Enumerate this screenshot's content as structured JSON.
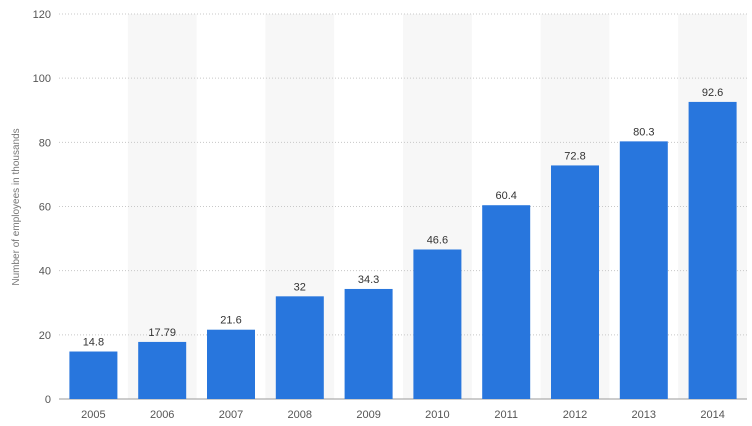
{
  "chart_data": {
    "type": "bar",
    "categories": [
      "2005",
      "2006",
      "2007",
      "2008",
      "2009",
      "2010",
      "2011",
      "2012",
      "2013",
      "2014"
    ],
    "values": [
      14.8,
      17.79,
      21.6,
      32,
      34.3,
      46.6,
      60.4,
      72.8,
      80.3,
      92.6
    ],
    "value_labels": [
      "14.8",
      "17.79",
      "21.6",
      "32",
      "34.3",
      "46.6",
      "60.4",
      "72.8",
      "80.3",
      "92.6"
    ],
    "title": "",
    "xlabel": "",
    "ylabel": "Number of employees in thousands",
    "ylim": [
      0,
      120
    ],
    "yticks": [
      0,
      20,
      40,
      60,
      80,
      100,
      120
    ],
    "grid": true,
    "bar_color": "#2876dd",
    "band_color": "#f7f7f7",
    "grid_color": "#c8c8c8"
  }
}
